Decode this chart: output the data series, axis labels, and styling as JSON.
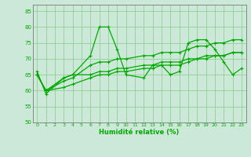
{
  "series1_x": [
    0,
    1,
    3,
    4,
    6,
    7,
    8,
    9,
    10,
    12,
    13,
    14,
    15,
    16,
    17,
    18,
    19,
    20,
    21,
    22,
    23
  ],
  "series1_y": [
    66,
    59,
    64,
    65,
    71,
    80,
    80,
    73,
    65,
    64,
    68,
    68,
    65,
    66,
    75,
    76,
    76,
    73,
    69,
    65,
    67
  ],
  "series2_x": [
    0,
    1,
    3,
    4,
    6,
    7,
    8,
    9,
    10,
    12,
    13,
    14,
    15,
    16,
    17,
    18,
    19,
    20,
    21,
    22,
    23
  ],
  "series2_y": [
    65,
    60,
    64,
    65,
    65,
    66,
    66,
    67,
    67,
    68,
    68,
    69,
    69,
    69,
    70,
    70,
    71,
    71,
    71,
    72,
    72
  ],
  "series3_x": [
    0,
    1,
    3,
    4,
    6,
    7,
    8,
    9,
    10,
    12,
    13,
    14,
    15,
    16,
    17,
    18,
    19,
    20,
    21,
    22,
    23
  ],
  "series3_y": [
    65,
    60,
    63,
    64,
    68,
    69,
    69,
    70,
    70,
    71,
    71,
    72,
    72,
    72,
    73,
    74,
    74,
    75,
    75,
    76,
    76
  ],
  "series4_x": [
    0,
    1,
    3,
    4,
    6,
    7,
    8,
    9,
    10,
    12,
    13,
    14,
    15,
    16,
    17,
    18,
    19,
    20,
    21,
    22,
    23
  ],
  "series4_y": [
    65,
    60,
    61,
    62,
    64,
    65,
    65,
    66,
    66,
    67,
    67,
    68,
    68,
    68,
    69,
    70,
    70,
    71,
    71,
    72,
    72
  ],
  "line_color": "#00aa00",
  "bg_color": "#cce8d8",
  "grid_color": "#88cc88",
  "xlabel": "Humidité relative (%)",
  "xlim": [
    -0.5,
    23.5
  ],
  "ylim": [
    50,
    87
  ],
  "yticks": [
    50,
    55,
    60,
    65,
    70,
    75,
    80,
    85
  ],
  "xticks": [
    0,
    1,
    2,
    3,
    4,
    5,
    6,
    7,
    8,
    9,
    10,
    11,
    12,
    13,
    14,
    15,
    16,
    17,
    18,
    19,
    20,
    21,
    22,
    23
  ]
}
